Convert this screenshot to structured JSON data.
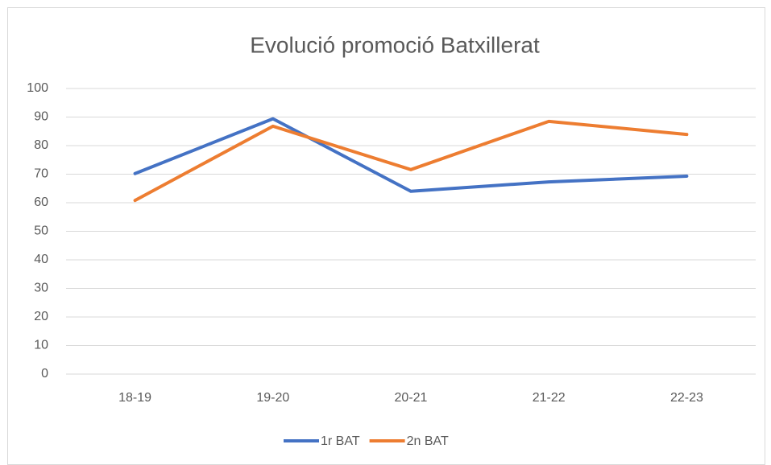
{
  "chart_data": {
    "type": "line",
    "title": "Evolució promoció Batxillerat",
    "categories": [
      "18-19",
      "19-20",
      "20-21",
      "21-22",
      "22-23"
    ],
    "series": [
      {
        "name": "1r BAT",
        "color": "#4472c4",
        "values": [
          70.2,
          89.4,
          64,
          67.3,
          69.3
        ]
      },
      {
        "name": "2n BAT",
        "color": "#ed7d31",
        "values": [
          60.8,
          86.8,
          71.6,
          88.5,
          83.9
        ]
      }
    ],
    "ylim": [
      0,
      100
    ],
    "yticks": [
      0,
      10,
      20,
      30,
      40,
      50,
      60,
      70,
      80,
      90,
      100
    ],
    "grid": true,
    "legend": "bottom"
  }
}
